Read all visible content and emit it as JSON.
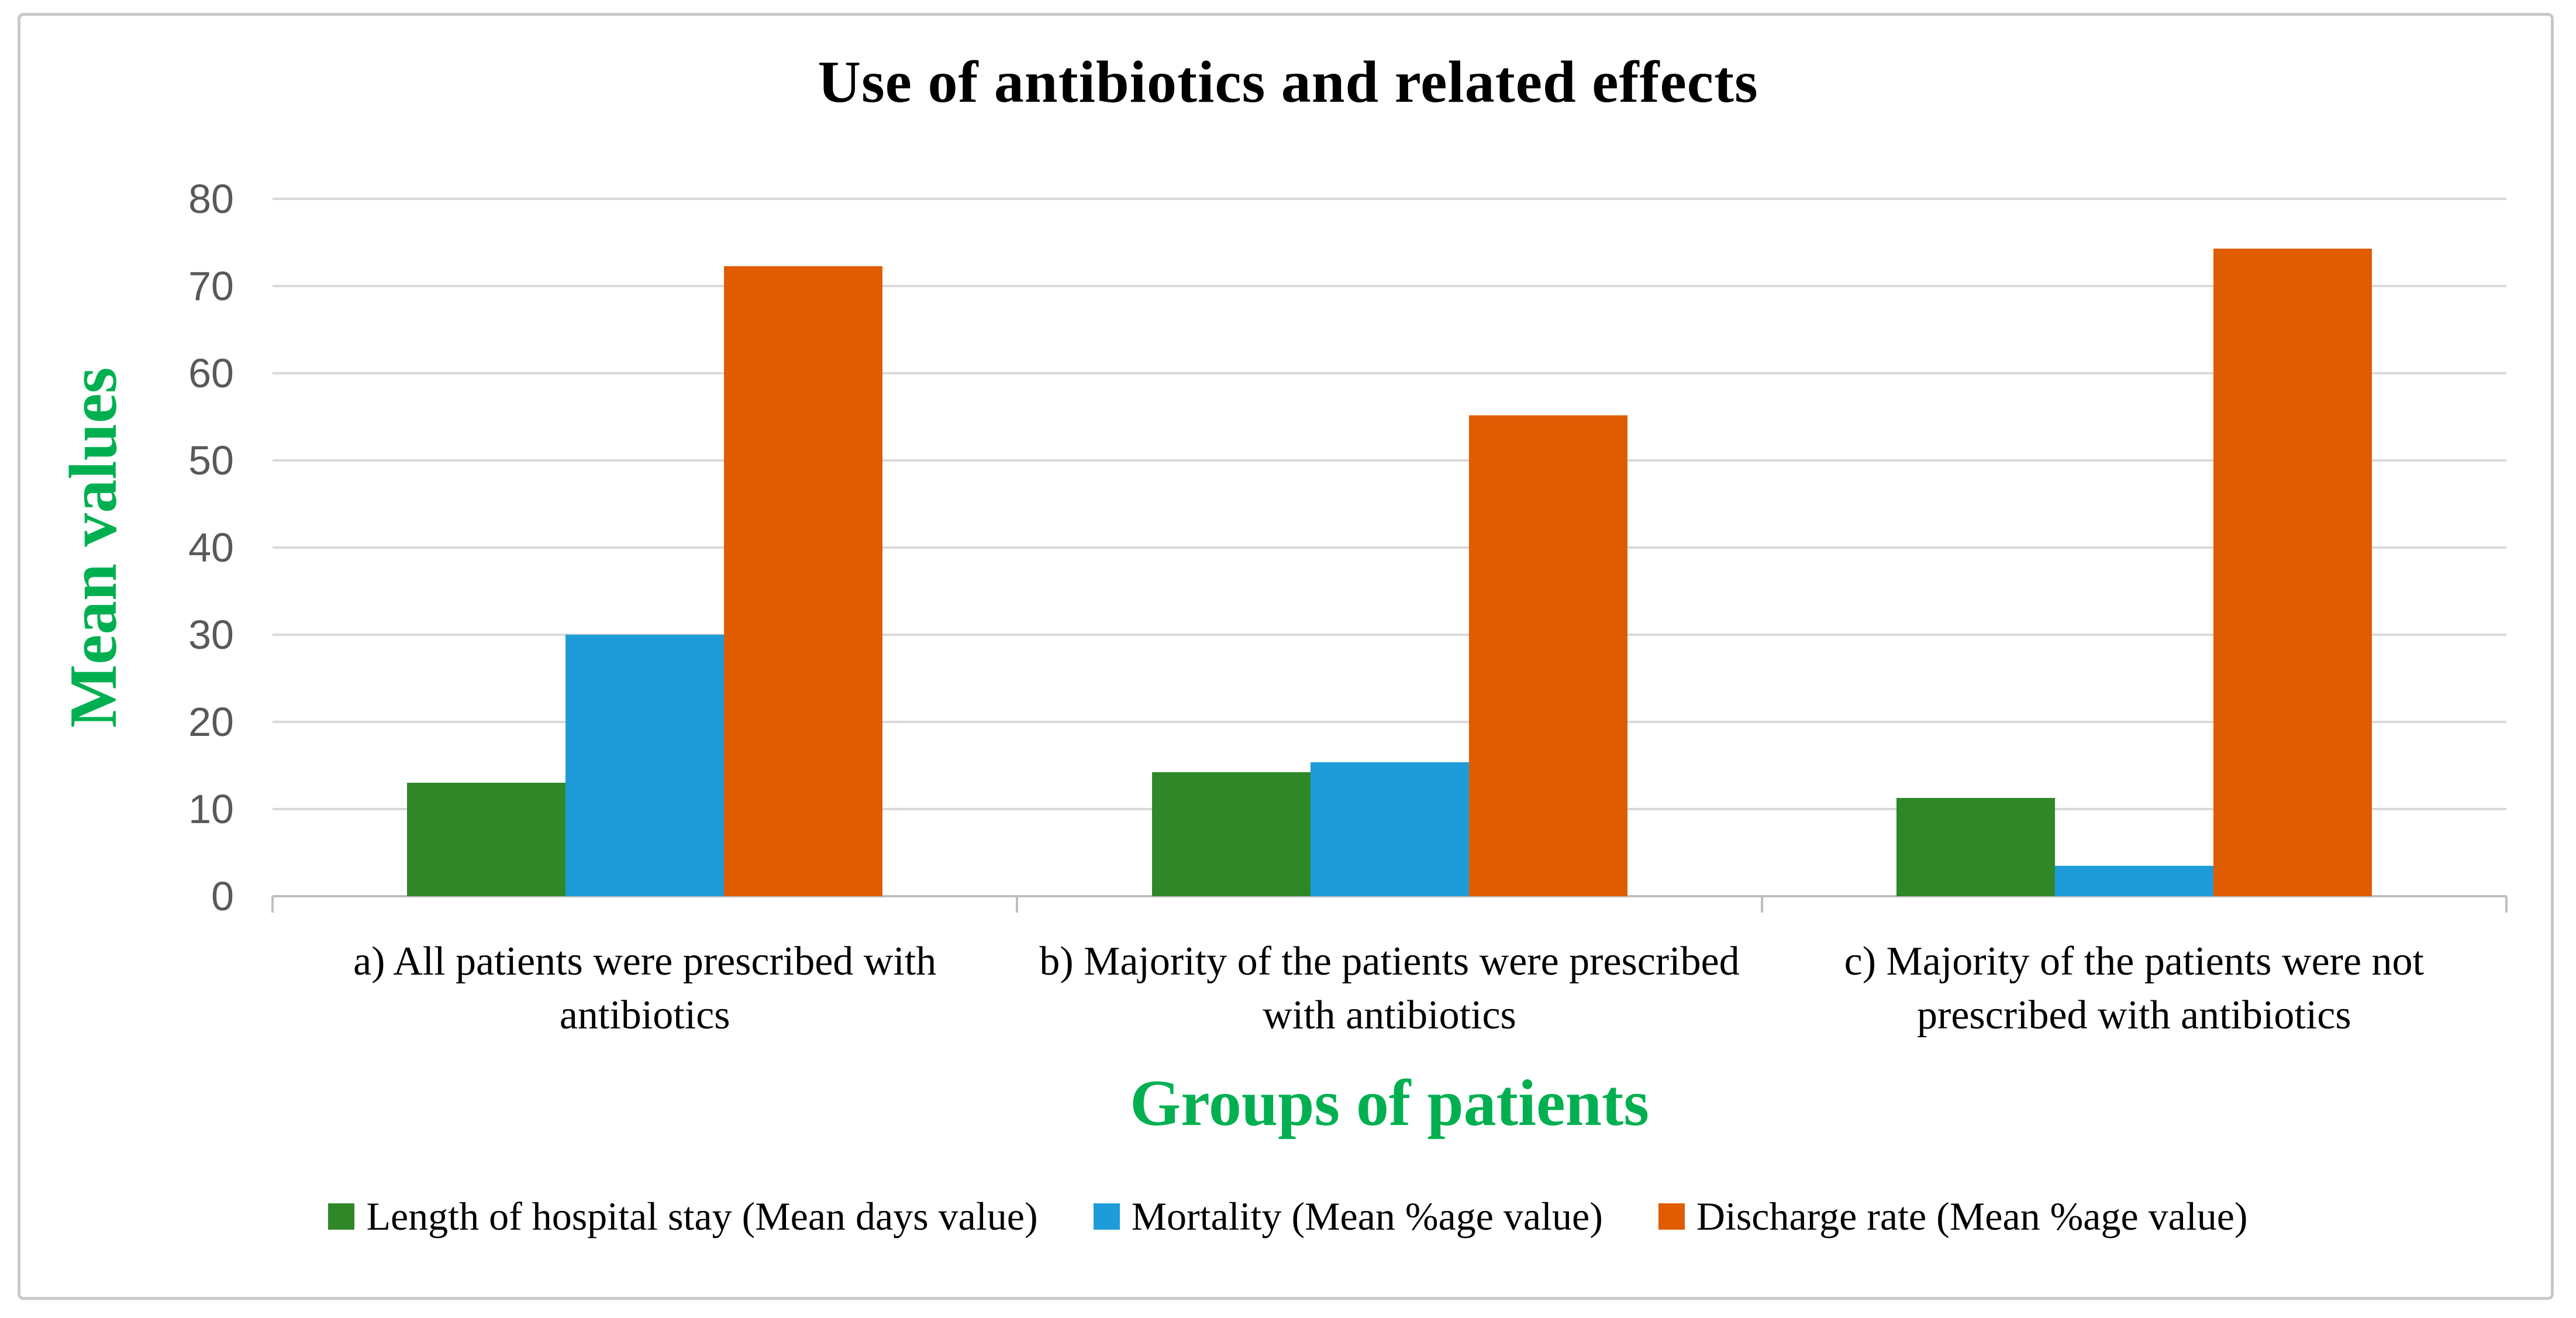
{
  "window": {
    "background": "#ffffff",
    "border_color": "#c9c9c9"
  },
  "chart_data": {
    "type": "bar",
    "title": "Use of antibiotics and related effects",
    "xlabel": "Groups of patients",
    "ylabel": "Mean values",
    "ylim": [
      0,
      80
    ],
    "yticks": [
      0,
      10,
      20,
      30,
      40,
      50,
      60,
      70,
      80
    ],
    "grid": true,
    "legend_position": "bottom",
    "title_color": "#000000",
    "axis_title_color": "#00B050",
    "tick_label_color": "#595959",
    "gridline_color": "#d9d9d9",
    "axis_line_color": "#bfbfbf",
    "categories": [
      "a) All patients were prescribed with antibiotics",
      "b) Majority of the patients were prescribed with antibiotics",
      "c) Majority of the patients were not prescribed with antibiotics"
    ],
    "series": [
      {
        "name": "Length of hospital stay (Mean days value)",
        "color": "#2F8728",
        "values": [
          13,
          14.2,
          11.3
        ]
      },
      {
        "name": "Mortality (Mean %age value)",
        "color": "#1E9CD9",
        "values": [
          30,
          15.4,
          3.5
        ]
      },
      {
        "name": "Discharge rate (Mean %age value)",
        "color": "#E05C03",
        "values": [
          72.3,
          55.2,
          74.3
        ]
      }
    ]
  }
}
